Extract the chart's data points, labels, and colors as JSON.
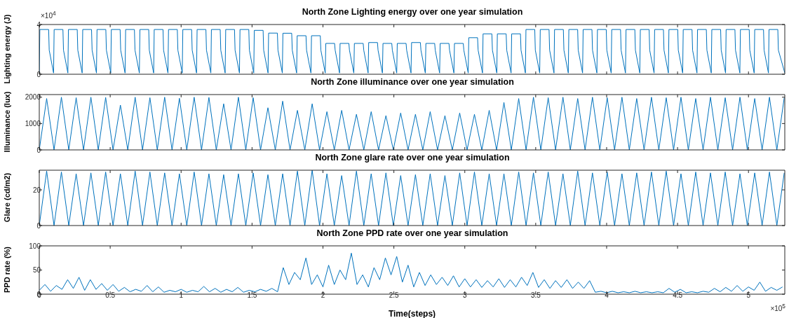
{
  "chart_data": [
    {
      "type": "line",
      "title": "North Zone Lighting energy over one year simulation",
      "ylabel": "Lighting energy (J)",
      "annotations": [
        "×10$^{4}$"
      ],
      "color": "#0072bd",
      "tick_labels": "y",
      "xlim": [
        0,
        5.256
      ],
      "xticks": [
        0,
        0.5,
        1,
        1.5,
        2,
        2.5,
        3,
        3.5,
        4,
        4.5,
        5
      ],
      "ylim": [
        0,
        4
      ],
      "yticks": [
        0,
        4
      ],
      "x": [
        0,
        0.004,
        0.066,
        0.07,
        0.1008,
        0.1048,
        0.1668,
        0.1708,
        0.2016,
        0.2056,
        0.2676,
        0.2716,
        0.3024,
        0.3064,
        0.3684,
        0.3724,
        0.4032,
        0.4072,
        0.4692,
        0.4732,
        0.504,
        0.508,
        0.57,
        0.574,
        0.6048,
        0.6088,
        0.6708,
        0.6748,
        0.7056,
        0.7096,
        0.7716,
        0.7756,
        0.8064,
        0.8104,
        0.8724,
        0.8764,
        0.9072,
        0.9112,
        0.9732,
        0.9772,
        1.008,
        1.012,
        1.074,
        1.078,
        1.1088,
        1.1128,
        1.1748,
        1.1788,
        1.2096,
        1.2136,
        1.2756,
        1.2796,
        1.3104,
        1.3144,
        1.3764,
        1.3804,
        1.4112,
        1.4152,
        1.4772,
        1.4812,
        1.512,
        1.516,
        1.578,
        1.582,
        1.6128,
        1.6168,
        1.6788,
        1.6828,
        1.7136,
        1.7176,
        1.7796,
        1.7836,
        1.8144,
        1.8184,
        1.8804,
        1.8844,
        1.9152,
        1.9192,
        1.9812,
        1.9852,
        2.016,
        2.02,
        2.082,
        2.086,
        2.1168,
        2.1208,
        2.1828,
        2.1868,
        2.2176,
        2.2216,
        2.2836,
        2.2876,
        2.3184,
        2.3224,
        2.3844,
        2.3884,
        2.4192,
        2.4232,
        2.4852,
        2.4892,
        2.52,
        2.524,
        2.586,
        2.59,
        2.6208,
        2.6248,
        2.6868,
        2.6908,
        2.7216,
        2.7256,
        2.7876,
        2.7916,
        2.8224,
        2.8264,
        2.8884,
        2.8924,
        2.9232,
        2.9272,
        2.9892,
        2.9932,
        3.024,
        3.028,
        3.09,
        3.094,
        3.1248,
        3.1288,
        3.1908,
        3.1948,
        3.2256,
        3.2296,
        3.2916,
        3.2956,
        3.3264,
        3.3304,
        3.3924,
        3.3964,
        3.4272,
        3.4312,
        3.4932,
        3.4972,
        3.528,
        3.532,
        3.594,
        3.598,
        3.6288,
        3.6328,
        3.6948,
        3.6988,
        3.7296,
        3.7336,
        3.7956,
        3.7996,
        3.8304,
        3.8344,
        3.8964,
        3.9004,
        3.9312,
        3.9352,
        3.9972,
        4.0012,
        4.032,
        4.036,
        4.098,
        4.102,
        4.1328,
        4.1368,
        4.1988,
        4.2028,
        4.2336,
        4.2376,
        4.2996,
        4.3036,
        4.3344,
        4.3384,
        4.4004,
        4.4044,
        4.4352,
        4.4392,
        4.5012,
        4.5052,
        4.536,
        4.54,
        4.602,
        4.606,
        4.6368,
        4.6408,
        4.7028,
        4.7068,
        4.7376,
        4.7416,
        4.8036,
        4.8076,
        4.8384,
        4.8424,
        4.9044,
        4.9084,
        4.9392,
        4.9432,
        5.0052,
        5.0092,
        5.04,
        5.044,
        5.106,
        5.11,
        5.1408,
        5.1448,
        5.2068,
        5.2108,
        5.256
      ],
      "values": [
        0.1,
        3.6,
        3.6,
        1.94,
        0.1,
        3.6,
        3.6,
        1.94,
        0.1,
        3.6,
        3.6,
        1.94,
        0.1,
        3.6,
        3.6,
        1.94,
        0.1,
        3.6,
        3.6,
        1.94,
        0.1,
        3.6,
        3.6,
        1.94,
        0.1,
        3.6,
        3.6,
        1.94,
        0.1,
        3.6,
        3.6,
        1.94,
        0.1,
        3.6,
        3.6,
        1.94,
        0.1,
        3.6,
        3.6,
        1.94,
        0.1,
        3.6,
        3.6,
        1.94,
        0.1,
        3.6,
        3.6,
        1.94,
        0.1,
        3.6,
        3.6,
        1.94,
        0.1,
        3.6,
        3.6,
        1.94,
        0.1,
        3.6,
        3.6,
        1.94,
        0.1,
        3.53,
        3.53,
        1.94,
        0.1,
        3.31,
        3.31,
        1.94,
        0.1,
        3.3,
        3.3,
        1.94,
        0.1,
        3.1,
        3.1,
        1.94,
        0.1,
        3.1,
        3.1,
        1.94,
        0.1,
        2.48,
        2.48,
        1.94,
        0.1,
        2.48,
        2.48,
        1.94,
        0.1,
        2.48,
        2.48,
        1.94,
        0.1,
        2.55,
        2.55,
        1.94,
        0.1,
        2.48,
        2.48,
        1.94,
        0.1,
        2.48,
        2.48,
        1.94,
        0.1,
        2.55,
        2.55,
        1.94,
        0.1,
        2.48,
        2.48,
        1.94,
        0.1,
        2.48,
        2.48,
        1.94,
        0.1,
        2.48,
        2.48,
        1.94,
        0.1,
        2.94,
        2.94,
        1.94,
        0.1,
        3.25,
        3.25,
        1.94,
        0.1,
        3.25,
        3.25,
        1.94,
        0.1,
        3.25,
        3.25,
        1.94,
        0.1,
        3.6,
        3.6,
        1.94,
        0.1,
        3.6,
        3.6,
        1.94,
        0.1,
        3.6,
        3.6,
        1.94,
        0.1,
        3.6,
        3.6,
        1.94,
        0.1,
        3.6,
        3.6,
        1.94,
        0.1,
        3.6,
        3.6,
        1.94,
        0.1,
        3.6,
        3.6,
        1.94,
        0.1,
        3.6,
        3.6,
        1.94,
        0.1,
        3.6,
        3.6,
        1.94,
        0.1,
        3.6,
        3.6,
        1.94,
        0.1,
        3.6,
        3.6,
        1.94,
        0.1,
        3.6,
        3.6,
        1.94,
        0.1,
        3.6,
        3.6,
        1.94,
        0.1,
        3.6,
        3.6,
        1.94,
        0.1,
        3.6,
        3.6,
        1.94,
        0.1,
        3.6,
        3.6,
        1.94,
        0.1,
        3.6,
        3.6,
        1.94,
        0.1,
        3.6,
        3.6,
        1.94,
        0.1
      ]
    },
    {
      "type": "line",
      "title": "North Zone illuminance over one year simulation",
      "ylabel": "Illuminance (lux)",
      "color": "#0072bd",
      "tick_labels": "y",
      "xlim": [
        0,
        5.256
      ],
      "xticks": [
        0,
        0.5,
        1,
        1.5,
        2,
        2.5,
        3,
        3.5,
        4,
        4.5,
        5
      ],
      "ylim": [
        0,
        2100
      ],
      "yticks": [
        0,
        1000,
        2000
      ],
      "x": [
        0,
        0.052,
        0.104,
        0.156,
        0.208,
        0.26,
        0.312,
        0.364,
        0.416,
        0.468,
        0.52,
        0.572,
        0.624,
        0.676,
        0.728,
        0.78,
        0.832,
        0.884,
        0.936,
        0.988,
        1.04,
        1.092,
        1.144,
        1.196,
        1.248,
        1.3,
        1.352,
        1.404,
        1.456,
        1.508,
        1.56,
        1.612,
        1.664,
        1.716,
        1.768,
        1.82,
        1.872,
        1.924,
        1.976,
        2.028,
        2.08,
        2.132,
        2.184,
        2.236,
        2.288,
        2.34,
        2.392,
        2.444,
        2.496,
        2.548,
        2.6,
        2.652,
        2.704,
        2.756,
        2.808,
        2.86,
        2.912,
        2.964,
        3.016,
        3.068,
        3.12,
        3.172,
        3.224,
        3.276,
        3.328,
        3.38,
        3.432,
        3.484,
        3.536,
        3.588,
        3.64,
        3.692,
        3.744,
        3.796,
        3.848,
        3.9,
        3.952,
        4.004,
        4.056,
        4.108,
        4.16,
        4.212,
        4.264,
        4.316,
        4.368,
        4.42,
        4.472,
        4.524,
        4.576,
        4.628,
        4.68,
        4.732,
        4.784,
        4.836,
        4.888,
        4.94,
        4.992,
        5.044,
        5.096,
        5.148,
        5.2,
        5.252
      ],
      "values": [
        0,
        1950,
        0,
        2000,
        0,
        1980,
        0,
        2000,
        0,
        1990,
        0,
        1700,
        0,
        2000,
        0,
        1980,
        0,
        2000,
        0,
        1960,
        0,
        2000,
        0,
        1990,
        0,
        1750,
        0,
        2000,
        0,
        1980,
        0,
        1600,
        0,
        1850,
        0,
        1500,
        0,
        1750,
        0,
        1450,
        0,
        1500,
        0,
        1350,
        0,
        1450,
        0,
        1300,
        0,
        1400,
        0,
        1350,
        0,
        1450,
        0,
        1300,
        0,
        1400,
        0,
        1350,
        0,
        1500,
        0,
        1800,
        0,
        1950,
        0,
        2000,
        0,
        1980,
        0,
        2000,
        0,
        1950,
        0,
        2000,
        0,
        1980,
        0,
        2000,
        0,
        1950,
        0,
        2000,
        0,
        1980,
        0,
        2000,
        0,
        1950,
        0,
        2000,
        0,
        1980,
        0,
        2000,
        0,
        1950,
        0,
        2000,
        0,
        1980
      ]
    },
    {
      "type": "line",
      "title": "North Zone glare rate over one year simulation",
      "ylabel": "Glare (cd/m2)",
      "color": "#0072bd",
      "tick_labels": "y",
      "xlim": [
        0,
        5.256
      ],
      "xticks": [
        0,
        0.5,
        1,
        1.5,
        2,
        2.5,
        3,
        3.5,
        4,
        4.5,
        5
      ],
      "ylim": [
        0,
        31
      ],
      "yticks": [
        0,
        20
      ],
      "x": [
        0,
        0.052,
        0.104,
        0.156,
        0.208,
        0.26,
        0.312,
        0.364,
        0.416,
        0.468,
        0.52,
        0.572,
        0.624,
        0.676,
        0.728,
        0.78,
        0.832,
        0.884,
        0.936,
        0.988,
        1.04,
        1.092,
        1.144,
        1.196,
        1.248,
        1.3,
        1.352,
        1.404,
        1.456,
        1.508,
        1.56,
        1.612,
        1.664,
        1.716,
        1.768,
        1.82,
        1.872,
        1.924,
        1.976,
        2.028,
        2.08,
        2.132,
        2.184,
        2.236,
        2.288,
        2.34,
        2.392,
        2.444,
        2.496,
        2.548,
        2.6,
        2.652,
        2.704,
        2.756,
        2.808,
        2.86,
        2.912,
        2.964,
        3.016,
        3.068,
        3.12,
        3.172,
        3.224,
        3.276,
        3.328,
        3.38,
        3.432,
        3.484,
        3.536,
        3.588,
        3.64,
        3.692,
        3.744,
        3.796,
        3.848,
        3.9,
        3.952,
        4.004,
        4.056,
        4.108,
        4.16,
        4.212,
        4.264,
        4.316,
        4.368,
        4.42,
        4.472,
        4.524,
        4.576,
        4.628,
        4.68,
        4.732,
        4.784,
        4.836,
        4.888,
        4.94,
        4.992,
        5.044,
        5.096,
        5.148,
        5.2,
        5.252
      ],
      "values": [
        0,
        30.5,
        0,
        30,
        0,
        29,
        0,
        29.5,
        0,
        30,
        0,
        29,
        0,
        30.5,
        0,
        30,
        0,
        29.5,
        0,
        29,
        0,
        30,
        0,
        29,
        0,
        28.5,
        0,
        29,
        0,
        29.5,
        0,
        28.5,
        0,
        29,
        0,
        30.5,
        0,
        31,
        0,
        29,
        0,
        28,
        0,
        30.5,
        0,
        29,
        0,
        29.5,
        0,
        28,
        0,
        28.5,
        0,
        29,
        0,
        28,
        0,
        29.5,
        0,
        30,
        0,
        29,
        0,
        29,
        0,
        30,
        0,
        29.5,
        0,
        30,
        0,
        29,
        0,
        30.5,
        0,
        29.5,
        0,
        30,
        0,
        29,
        0,
        29.5,
        0,
        30,
        0,
        30.5,
        0,
        29,
        0,
        30,
        0,
        29.5,
        0,
        30,
        0,
        29,
        0,
        29.5,
        0,
        30,
        0,
        29.5
      ]
    },
    {
      "type": "line",
      "title": "North Zone PPD rate over one year simulation",
      "ylabel": "PPD rate (%)",
      "xlabel": "Time(steps)",
      "annotations": [
        "×10$^{5}$"
      ],
      "color": "#0072bd",
      "xlim": [
        0,
        5.256
      ],
      "xticks": [
        0,
        0.5,
        1,
        1.5,
        2,
        2.5,
        3,
        3.5,
        4,
        4.5,
        5
      ],
      "ylim": [
        0,
        100
      ],
      "yticks": [
        0,
        50,
        100
      ],
      "x": [
        0,
        0.04,
        0.08,
        0.12,
        0.16,
        0.2,
        0.24,
        0.28,
        0.32,
        0.36,
        0.4,
        0.44,
        0.48,
        0.52,
        0.56,
        0.6,
        0.64,
        0.68,
        0.72,
        0.76,
        0.8,
        0.84,
        0.88,
        0.92,
        0.96,
        1,
        1.04,
        1.08,
        1.12,
        1.16,
        1.2,
        1.24,
        1.28,
        1.32,
        1.36,
        1.4,
        1.44,
        1.48,
        1.52,
        1.56,
        1.6,
        1.64,
        1.68,
        1.72,
        1.76,
        1.8,
        1.84,
        1.88,
        1.92,
        1.96,
        2,
        2.04,
        2.08,
        2.12,
        2.16,
        2.2,
        2.24,
        2.28,
        2.32,
        2.36,
        2.4,
        2.44,
        2.48,
        2.52,
        2.56,
        2.6,
        2.64,
        2.68,
        2.72,
        2.76,
        2.8,
        2.84,
        2.88,
        2.92,
        2.96,
        3,
        3.04,
        3.08,
        3.12,
        3.16,
        3.2,
        3.24,
        3.28,
        3.32,
        3.36,
        3.4,
        3.44,
        3.48,
        3.52,
        3.56,
        3.6,
        3.64,
        3.68,
        3.72,
        3.76,
        3.8,
        3.84,
        3.88,
        3.92,
        3.96,
        4,
        4.04,
        4.08,
        4.12,
        4.16,
        4.2,
        4.24,
        4.28,
        4.32,
        4.36,
        4.4,
        4.44,
        4.48,
        4.52,
        4.56,
        4.6,
        4.64,
        4.68,
        4.72,
        4.76,
        4.8,
        4.84,
        4.88,
        4.92,
        4.96,
        5,
        5.04,
        5.08,
        5.12,
        5.16,
        5.2,
        5.24
      ],
      "values": [
        8,
        20,
        6,
        18,
        10,
        30,
        12,
        35,
        8,
        30,
        10,
        22,
        8,
        20,
        6,
        14,
        5,
        10,
        6,
        18,
        5,
        15,
        4,
        8,
        5,
        10,
        4,
        8,
        5,
        16,
        5,
        12,
        4,
        10,
        5,
        14,
        4,
        8,
        5,
        10,
        6,
        12,
        5,
        55,
        20,
        45,
        30,
        75,
        20,
        40,
        15,
        60,
        20,
        50,
        30,
        85,
        20,
        40,
        15,
        55,
        30,
        75,
        40,
        78,
        25,
        60,
        15,
        45,
        18,
        40,
        20,
        35,
        18,
        38,
        15,
        32,
        15,
        30,
        14,
        28,
        15,
        32,
        14,
        30,
        15,
        35,
        18,
        45,
        14,
        30,
        12,
        28,
        14,
        30,
        12,
        25,
        12,
        28,
        4,
        6,
        3,
        6,
        3,
        5,
        3,
        6,
        3,
        5,
        3,
        5,
        3,
        12,
        4,
        10,
        3,
        5,
        3,
        6,
        4,
        12,
        5,
        14,
        6,
        18,
        6,
        15,
        8,
        25,
        6,
        14,
        8,
        15
      ]
    }
  ]
}
